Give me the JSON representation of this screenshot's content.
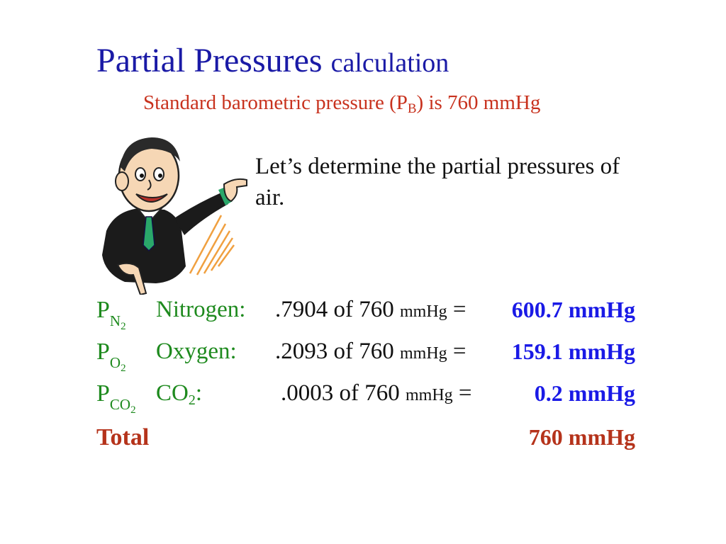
{
  "title": {
    "main": "Partial Pressures",
    "sub": "calculation"
  },
  "subtitle": {
    "prefix": "Standard barometric pressure (P",
    "subscript": "B",
    "suffix": ") is 760 mmHg"
  },
  "intro": "Let’s determine the partial pressures of air.",
  "rows": [
    {
      "symbol": "P",
      "symbol_sub": "N",
      "symbol_subsub": "2",
      "name": "Nitrogen:",
      "name_sub": "",
      "name_suffix": "",
      "calc_prefix": ".7904 of 760",
      "calc_unit": "mmHg",
      "calc_eq": "=",
      "result": "600.7 mmHg"
    },
    {
      "symbol": "P",
      "symbol_sub": "O",
      "symbol_subsub": "2",
      "name": "Oxygen:",
      "name_sub": "",
      "name_suffix": "",
      "calc_prefix": ".2093 of 760",
      "calc_unit": "mmHg",
      "calc_eq": "=",
      "result": "159.1 mmHg"
    },
    {
      "symbol": "P",
      "symbol_sub": "CO",
      "symbol_subsub": "2",
      "name": "CO",
      "name_sub": "2",
      "name_suffix": ":",
      "calc_prefix": ".0003 of 760",
      "calc_unit": "mmHg",
      "calc_eq": "=",
      "result": "0.2 mmHg"
    }
  ],
  "total": {
    "label": "Total",
    "value": "760 mmHg"
  },
  "colors": {
    "title": "#1a1aa6",
    "subtitle": "#c8321e",
    "green": "#1e8a1e",
    "result": "#1a1ae6",
    "total": "#b5331b"
  },
  "illustration": "cartoon-man-pointing"
}
